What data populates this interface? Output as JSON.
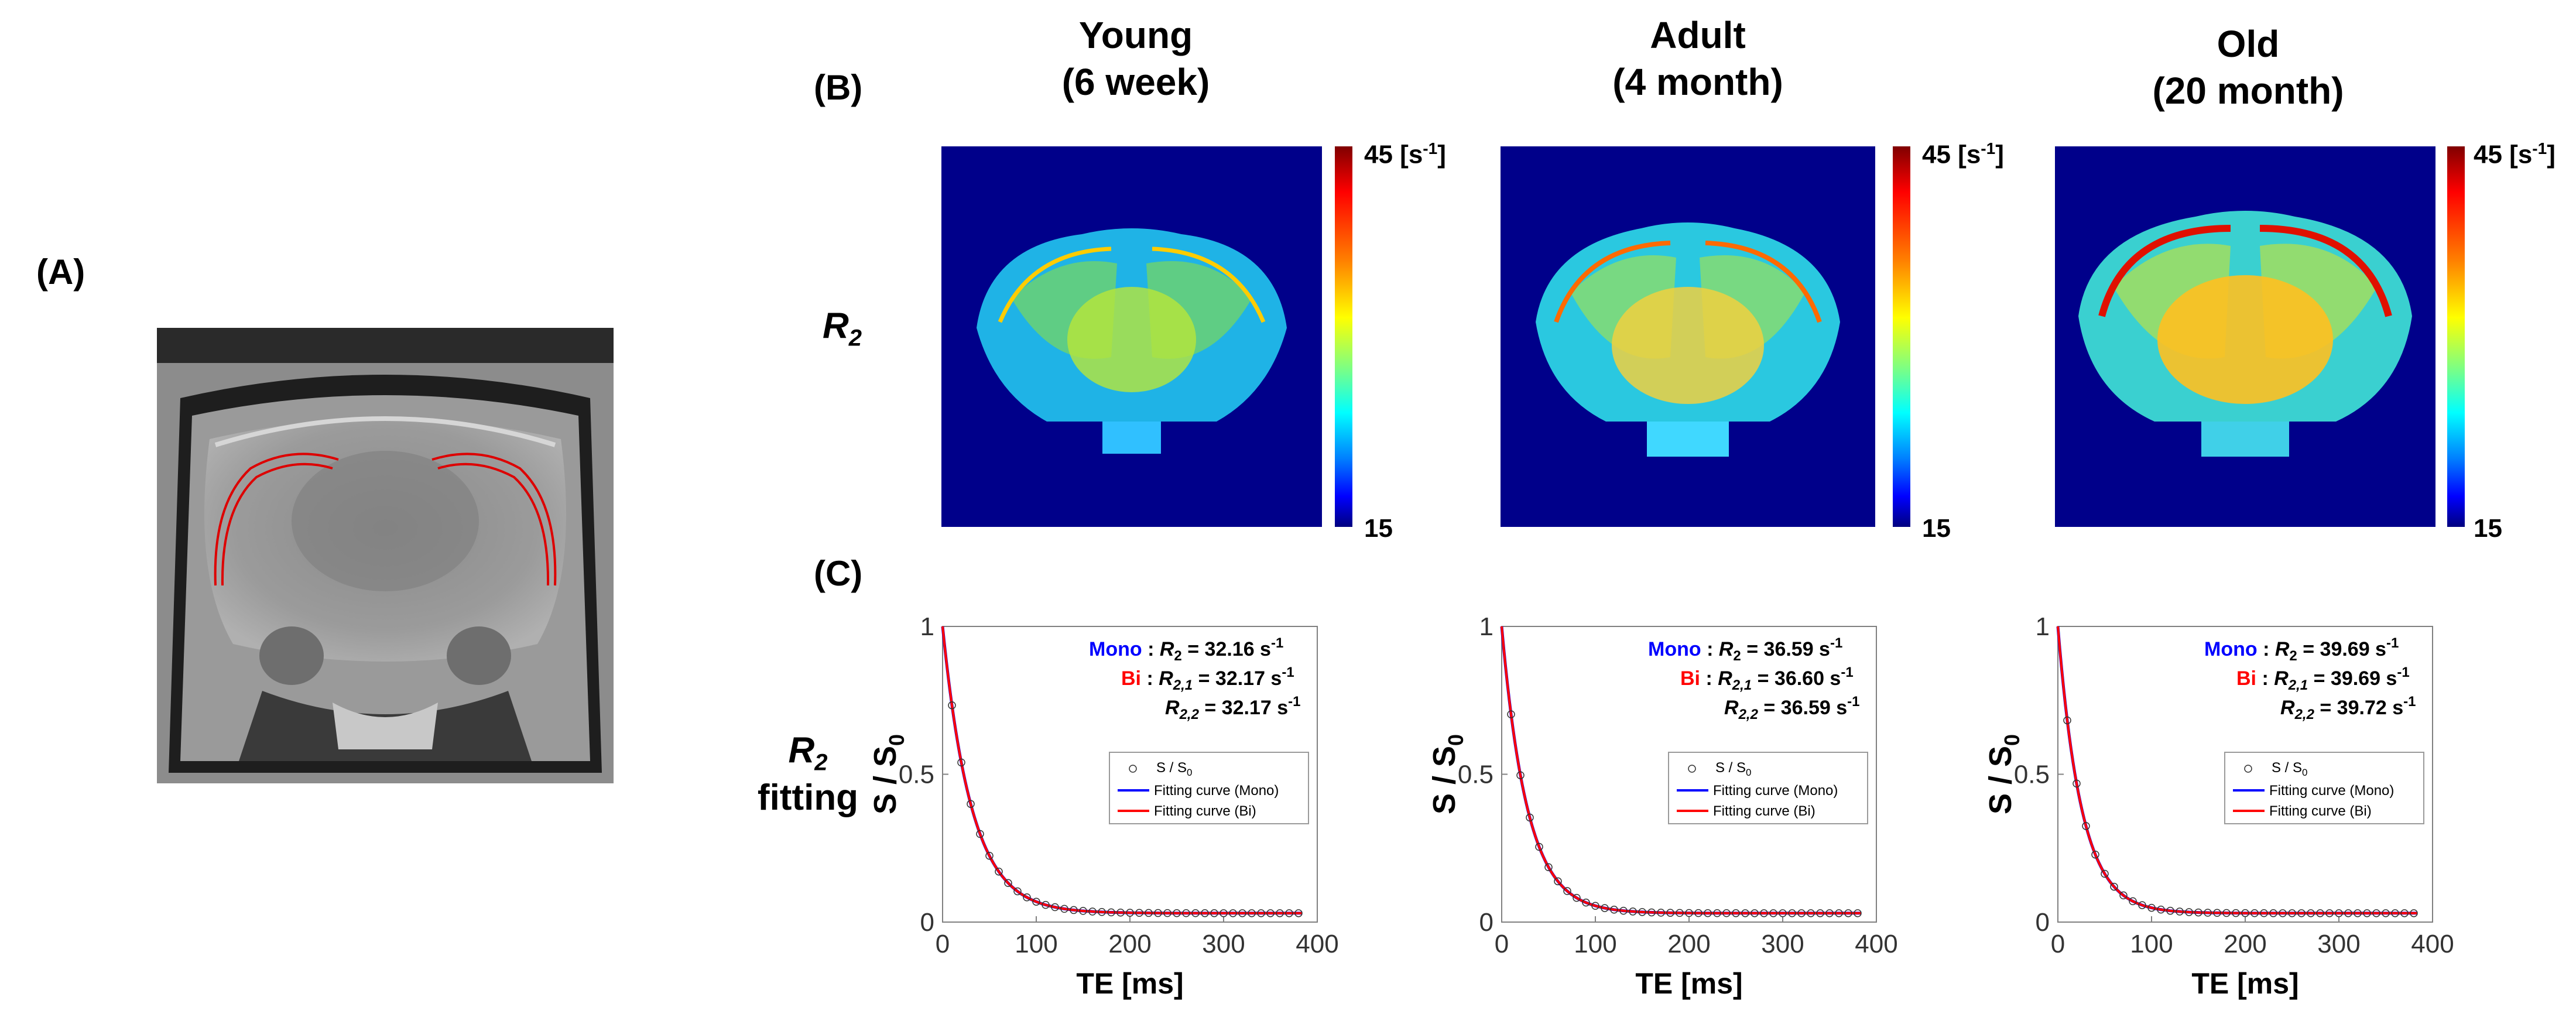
{
  "labels": {
    "a": "(A)",
    "b": "(B)",
    "c": "(C)"
  },
  "columns": [
    {
      "title_line1": "Young",
      "title_line2": "(6 week)"
    },
    {
      "title_line1": "Adult",
      "title_line2": "(4 month)"
    },
    {
      "title_line1": "Old",
      "title_line2": "(20 month)"
    }
  ],
  "row_labels": {
    "r2_main": "R",
    "r2_sub": "2",
    "fit_main": "R",
    "fit_sub": "2",
    "fit_word": "fitting"
  },
  "colorbar": {
    "max_text": "45 [s",
    "max_exp": "-1",
    "max_close": "]",
    "min_text": "15"
  },
  "colors": {
    "mono": "#0000ff",
    "bi": "#ff0000",
    "map_bg": "#00008a"
  },
  "chart_data": [
    {
      "type": "line",
      "panel": "Young (6 week)",
      "xlabel": "TE [ms]",
      "ylabel": "S / S0",
      "xlim": [
        0,
        400
      ],
      "ylim": [
        0,
        1
      ],
      "xticks": [
        "0",
        "100",
        "200",
        "300",
        "400"
      ],
      "yticks": [
        "0",
        "0.5",
        "1"
      ],
      "r2_mono": 32.16,
      "r21_bi": 32.17,
      "r22_bi": 32.17,
      "anno": {
        "mono": "Mono",
        "bi": "Bi",
        "mono_val": "= 32.16 s",
        "bi1_val": "= 32.17 s",
        "bi2_val": "= 32.17 s",
        "unit_exp": "-1"
      },
      "legend": [
        "S / S0",
        "Fitting curve (Mono)",
        "Fitting curve (Bi)"
      ],
      "series": [
        {
          "name": "S / S0",
          "x": [
            10,
            20,
            30,
            40,
            50,
            60,
            70,
            80,
            90,
            100,
            110,
            120,
            130,
            140,
            150,
            160,
            170,
            180,
            190,
            200,
            210,
            220,
            230,
            240,
            250,
            260,
            270,
            280,
            290,
            300,
            310,
            320,
            330,
            340,
            350,
            360,
            370,
            380
          ]
        }
      ]
    },
    {
      "type": "line",
      "panel": "Adult (4 month)",
      "xlabel": "TE [ms]",
      "ylabel": "S / S0",
      "xlim": [
        0,
        400
      ],
      "ylim": [
        0,
        1
      ],
      "xticks": [
        "0",
        "100",
        "200",
        "300",
        "400"
      ],
      "yticks": [
        "0",
        "0.5",
        "1"
      ],
      "r2_mono": 36.59,
      "r21_bi": 36.6,
      "r22_bi": 36.59,
      "anno": {
        "mono": "Mono",
        "bi": "Bi",
        "mono_val": "= 36.59 s",
        "bi1_val": "= 36.60 s",
        "bi2_val": "= 36.59 s",
        "unit_exp": "-1"
      },
      "legend": [
        "S / S0",
        "Fitting curve (Mono)",
        "Fitting curve (Bi)"
      ],
      "series": [
        {
          "name": "S / S0",
          "x": [
            10,
            20,
            30,
            40,
            50,
            60,
            70,
            80,
            90,
            100,
            110,
            120,
            130,
            140,
            150,
            160,
            170,
            180,
            190,
            200,
            210,
            220,
            230,
            240,
            250,
            260,
            270,
            280,
            290,
            300,
            310,
            320,
            330,
            340,
            350,
            360,
            370,
            380
          ]
        }
      ]
    },
    {
      "type": "line",
      "panel": "Old (20 month)",
      "xlabel": "TE [ms]",
      "ylabel": "S / S0",
      "xlim": [
        0,
        400
      ],
      "ylim": [
        0,
        1
      ],
      "xticks": [
        "0",
        "100",
        "200",
        "300",
        "400"
      ],
      "yticks": [
        "0",
        "0.5",
        "1"
      ],
      "r2_mono": 39.69,
      "r21_bi": 39.69,
      "r22_bi": 39.72,
      "anno": {
        "mono": "Mono",
        "bi": "Bi",
        "mono_val": "= 39.69 s",
        "bi1_val": "= 39.69 s",
        "bi2_val": "= 39.72 s",
        "unit_exp": "-1"
      },
      "legend": [
        "S / S0",
        "Fitting curve (Mono)",
        "Fitting curve (Bi)"
      ],
      "series": [
        {
          "name": "S / S0",
          "x": [
            10,
            20,
            30,
            40,
            50,
            60,
            70,
            80,
            90,
            100,
            110,
            120,
            130,
            140,
            150,
            160,
            170,
            180,
            190,
            200,
            210,
            220,
            230,
            240,
            250,
            260,
            270,
            280,
            290,
            300,
            310,
            320,
            330,
            340,
            350,
            360,
            370,
            380
          ]
        }
      ]
    }
  ]
}
